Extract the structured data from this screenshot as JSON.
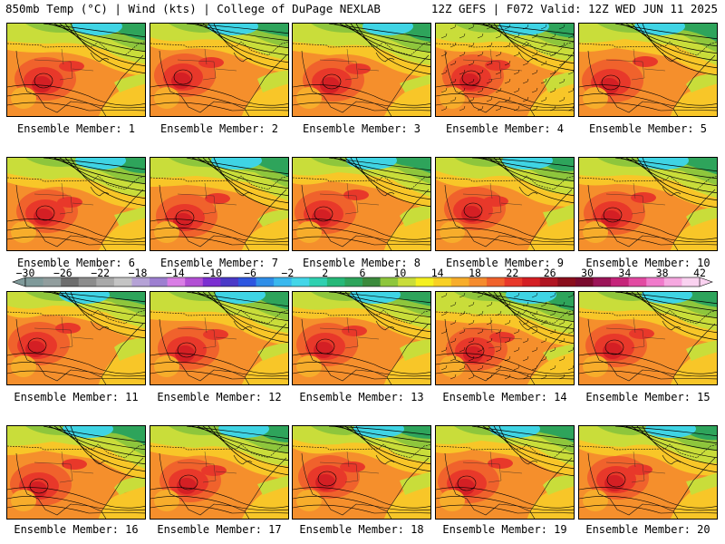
{
  "header": {
    "left": "850mb Temp (°C) | Wind (kts) | College of DuPage NEXLAB",
    "right": "12Z GEFS | F072 Valid: 12Z WED JUN 11 2025"
  },
  "label_prefix": "Ensemble Member: ",
  "members": [
    1,
    2,
    3,
    4,
    5,
    6,
    7,
    8,
    9,
    10,
    11,
    12,
    13,
    14,
    15,
    16,
    17,
    18,
    19,
    20
  ],
  "colorbar": {
    "tick_labels": [
      "-30",
      "-26",
      "-22",
      "-18",
      "-14",
      "-10",
      "-6",
      "-2",
      "2",
      "6",
      "10",
      "14",
      "18",
      "22",
      "26",
      "30",
      "34",
      "38",
      "42"
    ],
    "colors": [
      "#7f9a9a",
      "#919d9d",
      "#6d6d6d",
      "#8c8c8c",
      "#a9a9a9",
      "#c4c4c4",
      "#b5a2d6",
      "#9d7fd0",
      "#d97de5",
      "#b24fd4",
      "#7b2fd1",
      "#4a39c7",
      "#2d56e0",
      "#2f8ee8",
      "#39b8ee",
      "#43d6e8",
      "#2fd0b0",
      "#26b878",
      "#2ea45b",
      "#3b8a3c",
      "#8ec63c",
      "#c9dd3a",
      "#f4f020",
      "#f8d024",
      "#f7ad2b",
      "#f58b2e",
      "#f0622c",
      "#e8382a",
      "#d41f24",
      "#b01522",
      "#8a0e1c",
      "#7a0a2e",
      "#9b1458",
      "#c5247a",
      "#e24aa2",
      "#f07acb",
      "#f6a8e0",
      "#fad2f0"
    ]
  }
}
